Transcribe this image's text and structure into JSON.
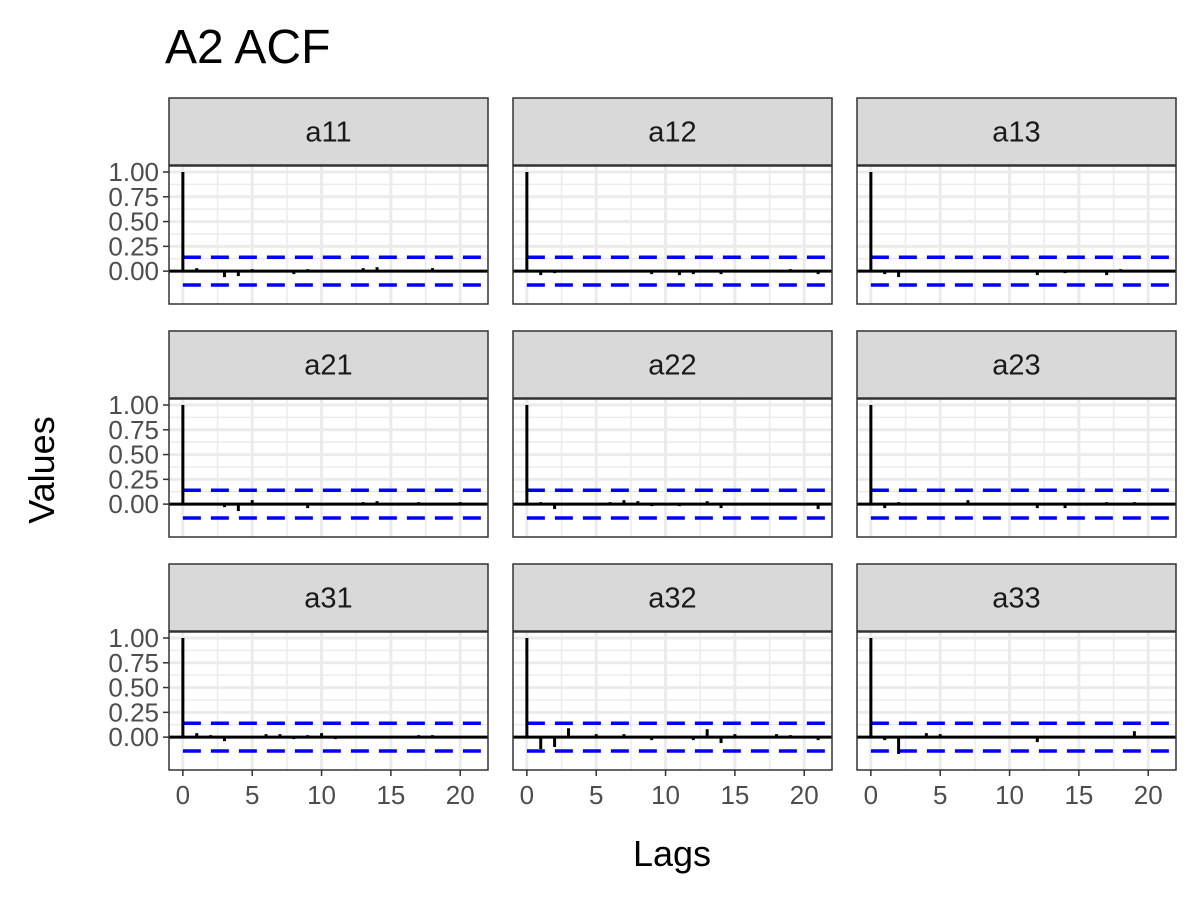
{
  "chart_data": {
    "type": "bar",
    "title": "A2 ACF",
    "xlabel": "Lags",
    "ylabel": "Values",
    "x_ticks": [
      0,
      5,
      10,
      15,
      20
    ],
    "y_ticks": [
      "0.00",
      "0.25",
      "0.50",
      "0.75",
      "1.00"
    ],
    "xlim": [
      -1,
      22
    ],
    "ylim": [
      -0.15,
      1.0
    ],
    "grid": true,
    "confidence_bound": 0.14,
    "colors": {
      "bars": "#000000",
      "bounds": "#0000ff",
      "strip_fill": "#d9d9d9",
      "grid": "#ebebeb",
      "border": "#333333"
    },
    "panels": [
      {
        "name": "a11",
        "lags": [
          0,
          1,
          2,
          3,
          4,
          5,
          6,
          7,
          8,
          9,
          10,
          11,
          12,
          13,
          14,
          15,
          16,
          17,
          18,
          19,
          20,
          21
        ],
        "values": [
          1.0,
          0.03,
          0.0,
          -0.06,
          -0.05,
          0.02,
          0.01,
          0.0,
          -0.03,
          0.02,
          0.0,
          0.0,
          0.01,
          0.03,
          0.04,
          0.0,
          0.0,
          0.0,
          0.03,
          0.0,
          0.0,
          0.0
        ]
      },
      {
        "name": "a12",
        "lags": [
          0,
          1,
          2,
          3,
          4,
          5,
          6,
          7,
          8,
          9,
          10,
          11,
          12,
          13,
          14,
          15,
          16,
          17,
          18,
          19,
          20,
          21
        ],
        "values": [
          1.0,
          -0.04,
          -0.02,
          0.0,
          0.0,
          0.0,
          0.0,
          0.0,
          0.0,
          -0.03,
          0.0,
          -0.04,
          -0.03,
          0.0,
          -0.03,
          0.0,
          0.0,
          0.0,
          0.0,
          0.02,
          0.0,
          -0.03
        ]
      },
      {
        "name": "a13",
        "lags": [
          0,
          1,
          2,
          3,
          4,
          5,
          6,
          7,
          8,
          9,
          10,
          11,
          12,
          13,
          14,
          15,
          16,
          17,
          18,
          19,
          20,
          21
        ],
        "values": [
          1.0,
          -0.03,
          -0.06,
          0.0,
          0.0,
          0.0,
          0.0,
          0.0,
          0.0,
          0.0,
          0.0,
          0.0,
          -0.04,
          0.0,
          -0.02,
          0.0,
          0.0,
          -0.04,
          0.02,
          0.0,
          0.0,
          0.0
        ]
      },
      {
        "name": "a21",
        "lags": [
          0,
          1,
          2,
          3,
          4,
          5,
          6,
          7,
          8,
          9,
          10,
          11,
          12,
          13,
          14,
          15,
          16,
          17,
          18,
          19,
          20,
          21
        ],
        "values": [
          1.0,
          0.0,
          0.0,
          -0.03,
          -0.07,
          0.04,
          0.0,
          0.0,
          0.0,
          -0.04,
          0.0,
          0.0,
          0.0,
          0.02,
          0.03,
          0.0,
          0.0,
          0.02,
          0.0,
          0.0,
          0.02,
          0.0
        ]
      },
      {
        "name": "a22",
        "lags": [
          0,
          1,
          2,
          3,
          4,
          5,
          6,
          7,
          8,
          9,
          10,
          11,
          12,
          13,
          14,
          15,
          16,
          17,
          18,
          19,
          20,
          21
        ],
        "values": [
          1.0,
          0.02,
          -0.05,
          0.0,
          0.0,
          0.0,
          0.02,
          0.04,
          0.03,
          -0.02,
          0.0,
          -0.02,
          0.0,
          0.03,
          -0.04,
          0.0,
          0.0,
          0.0,
          0.0,
          0.0,
          0.0,
          -0.05
        ]
      },
      {
        "name": "a23",
        "lags": [
          0,
          1,
          2,
          3,
          4,
          5,
          6,
          7,
          8,
          9,
          10,
          11,
          12,
          13,
          14,
          15,
          16,
          17,
          18,
          19,
          20,
          21
        ],
        "values": [
          1.0,
          -0.04,
          0.02,
          0.0,
          0.0,
          0.0,
          0.0,
          0.04,
          0.0,
          0.0,
          0.0,
          0.0,
          -0.04,
          0.0,
          -0.04,
          0.0,
          0.0,
          0.02,
          0.0,
          0.02,
          0.0,
          0.0
        ]
      },
      {
        "name": "a31",
        "lags": [
          0,
          1,
          2,
          3,
          4,
          5,
          6,
          7,
          8,
          9,
          10,
          11,
          12,
          13,
          14,
          15,
          16,
          17,
          18,
          19,
          20,
          21
        ],
        "values": [
          1.0,
          0.04,
          0.02,
          -0.04,
          0.0,
          0.0,
          0.03,
          0.03,
          -0.02,
          0.02,
          0.04,
          -0.02,
          0.0,
          0.0,
          0.0,
          0.0,
          0.0,
          0.02,
          0.02,
          0.0,
          0.0,
          0.0
        ]
      },
      {
        "name": "a32",
        "lags": [
          0,
          1,
          2,
          3,
          4,
          5,
          6,
          7,
          8,
          9,
          10,
          11,
          12,
          13,
          14,
          15,
          16,
          17,
          18,
          19,
          20,
          21
        ],
        "values": [
          1.0,
          -0.12,
          -0.1,
          0.09,
          0.0,
          0.03,
          0.0,
          0.03,
          0.0,
          -0.03,
          0.0,
          0.0,
          -0.03,
          0.08,
          -0.06,
          0.03,
          0.0,
          0.0,
          0.03,
          0.02,
          0.0,
          -0.03
        ]
      },
      {
        "name": "a33",
        "lags": [
          0,
          1,
          2,
          3,
          4,
          5,
          6,
          7,
          8,
          9,
          10,
          11,
          12,
          13,
          14,
          15,
          16,
          17,
          18,
          19,
          20,
          21
        ],
        "values": [
          1.0,
          -0.03,
          -0.17,
          0.0,
          0.04,
          0.03,
          0.0,
          0.0,
          0.0,
          0.0,
          0.0,
          0.0,
          -0.05,
          0.0,
          0.0,
          0.0,
          0.0,
          0.0,
          0.0,
          0.06,
          0.0,
          0.0
        ]
      }
    ]
  }
}
